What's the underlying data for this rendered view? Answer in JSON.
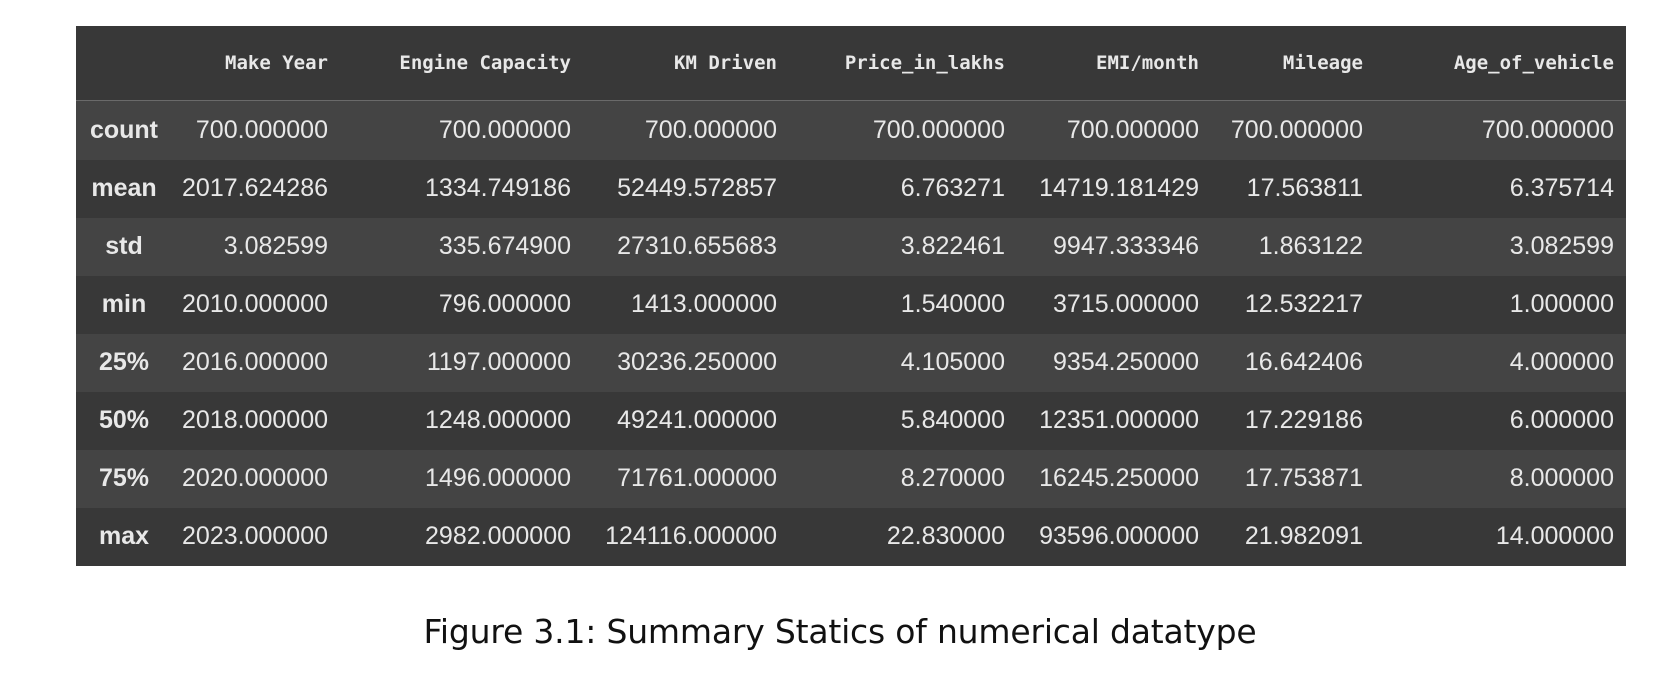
{
  "table": {
    "columns": [
      "",
      "Make Year",
      "Engine Capacity",
      "KM Driven",
      "Price_in_lakhs",
      "EMI/month",
      "Mileage",
      "Age_of_vehicle"
    ],
    "rows": [
      {
        "label": "count",
        "values": [
          "700.000000",
          "700.000000",
          "700.000000",
          "700.000000",
          "700.000000",
          "700.000000",
          "700.000000"
        ]
      },
      {
        "label": "mean",
        "values": [
          "2017.624286",
          "1334.749186",
          "52449.572857",
          "6.763271",
          "14719.181429",
          "17.563811",
          "6.375714"
        ]
      },
      {
        "label": "std",
        "values": [
          "3.082599",
          "335.674900",
          "27310.655683",
          "3.822461",
          "9947.333346",
          "1.863122",
          "3.082599"
        ]
      },
      {
        "label": "min",
        "values": [
          "2010.000000",
          "796.000000",
          "1413.000000",
          "1.540000",
          "3715.000000",
          "12.532217",
          "1.000000"
        ]
      },
      {
        "label": "25%",
        "values": [
          "2016.000000",
          "1197.000000",
          "30236.250000",
          "4.105000",
          "9354.250000",
          "16.642406",
          "4.000000"
        ]
      },
      {
        "label": "50%",
        "values": [
          "2018.000000",
          "1248.000000",
          "49241.000000",
          "5.840000",
          "12351.000000",
          "17.229186",
          "6.000000"
        ]
      },
      {
        "label": "75%",
        "values": [
          "2020.000000",
          "1496.000000",
          "71761.000000",
          "8.270000",
          "16245.250000",
          "17.753871",
          "8.000000"
        ]
      },
      {
        "label": "max",
        "values": [
          "2023.000000",
          "2982.000000",
          "124116.000000",
          "22.830000",
          "93596.000000",
          "21.982091",
          "14.000000"
        ]
      }
    ]
  },
  "caption": "Figure 3.1: Summary Statics of numerical datatype",
  "colors": {
    "table_bg": "#383838",
    "row_alt_bg": "#444444",
    "text": "#e8e8e8"
  }
}
